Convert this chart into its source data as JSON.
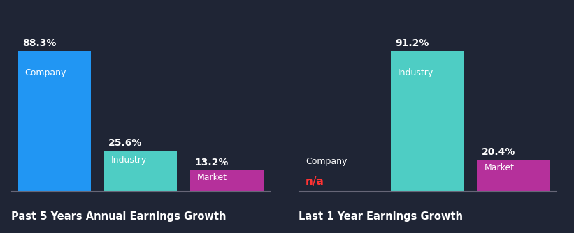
{
  "background_color": "#1f2535",
  "chart1": {
    "title": "Past 5 Years Annual Earnings Growth",
    "bars": [
      {
        "label": "Company",
        "value": 88.3,
        "color": "#2196f3",
        "na": false
      },
      {
        "label": "Industry",
        "value": 25.6,
        "color": "#4ecdc4",
        "na": false
      },
      {
        "label": "Market",
        "value": 13.2,
        "color": "#b5309b",
        "na": false
      }
    ]
  },
  "chart2": {
    "title": "Last 1 Year Earnings Growth",
    "bars": [
      {
        "label": "Company",
        "value": 0,
        "color": "#2196f3",
        "na": true
      },
      {
        "label": "Industry",
        "value": 91.2,
        "color": "#4ecdc4",
        "na": false
      },
      {
        "label": "Market",
        "value": 20.4,
        "color": "#b5309b",
        "na": false
      }
    ]
  },
  "label_color": "#ffffff",
  "title_color": "#ffffff",
  "value_color": "#ffffff",
  "na_color": "#ff3333",
  "title_fontsize": 10.5,
  "value_fontsize": 10,
  "bar_label_fontsize": 9
}
